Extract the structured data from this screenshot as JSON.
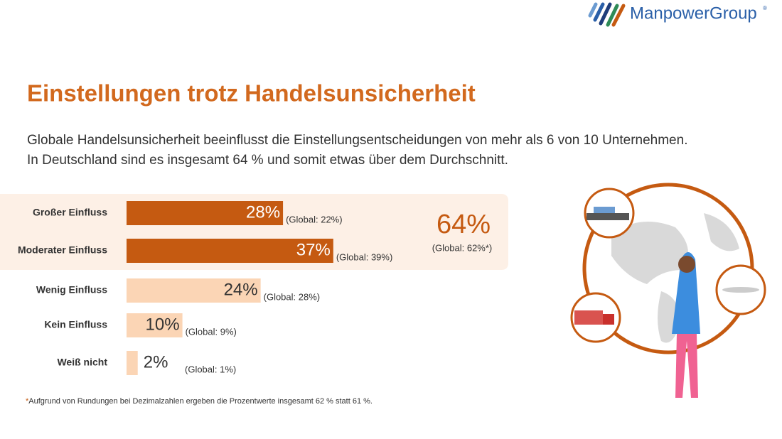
{
  "logo": {
    "text": "ManpowerGroup",
    "mark": "®"
  },
  "chart_data": {
    "type": "hbar",
    "title": "Einstellungen trotz Handelsunsicherheit",
    "subtitle": [
      "Globale Handelsunsicherheit beeinflusst die Einstellungsentscheidungen von mehr als 6 von 10 Unternehmen.",
      "In Deutschland sind es insgesamt 64 % und somit etwas über dem Durchschnitt."
    ],
    "categories": [
      "Großer Einfluss",
      "Moderater Einfluss",
      "Wenig Einfluss",
      "Kein Einfluss",
      "Weiß nicht"
    ],
    "values": [
      28,
      37,
      24,
      10,
      2
    ],
    "value_labels": [
      "28%",
      "37%",
      "24%",
      "10%",
      "2%"
    ],
    "global_labels": [
      "(Global:  22%)",
      "(Global:  39%)",
      "(Global:  28%)",
      "(Global:  9%)",
      "(Global:  1%)"
    ],
    "colors": [
      "#c55a11",
      "#c55a11",
      "#fbd5b5",
      "#fbd5b5",
      "#fbd5b5"
    ],
    "xlim": [
      0,
      100
    ],
    "summary": {
      "value": 64,
      "label": "64%",
      "global": "(Global:  62%*)",
      "color": "#c55a11"
    },
    "footnote": {
      "mark": "*",
      "text": "Aufgrund von Rundungen bei Dezimalzahlen ergeben die Prozentwerte insgesamt 62 % statt 61 %."
    }
  }
}
